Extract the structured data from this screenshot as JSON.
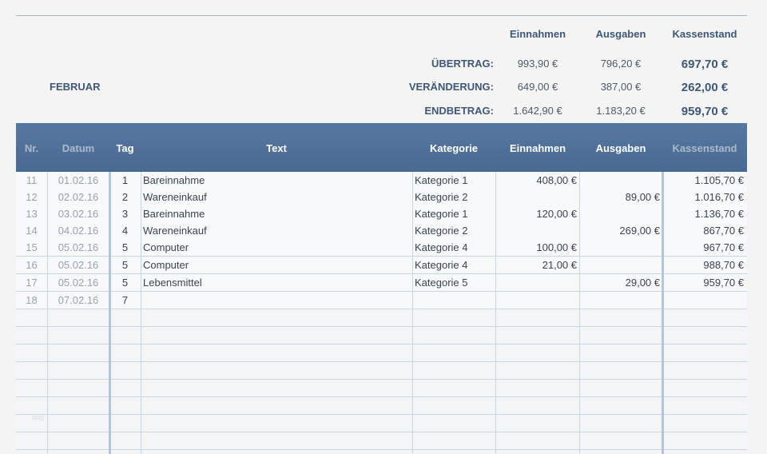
{
  "summary": {
    "headers": {
      "income": "Einnahmen",
      "expenses": "Ausgaben",
      "balance": "Kassenstand"
    },
    "month": "FEBRUAR",
    "rows": [
      {
        "label": "ÜBERTRAG:",
        "income": "993,90 €",
        "expenses": "796,20 €",
        "balance": "697,70 €"
      },
      {
        "label": "VERÄNDERUNG:",
        "income": "649,00 €",
        "expenses": "387,00 €",
        "balance": "262,00 €"
      },
      {
        "label": "ENDBETRAG:",
        "income": "1.642,90 €",
        "expenses": "1.183,20 €",
        "balance": "959,70 €"
      }
    ]
  },
  "table": {
    "headers": {
      "nr": "Nr.",
      "datum": "Datum",
      "tag": "Tag",
      "text": "Text",
      "kategorie": "Kategorie",
      "einnahmen": "Einnahmen",
      "ausgaben": "Ausgaben",
      "kassenstand": "Kassenstand"
    },
    "rows": [
      {
        "nr": "11",
        "datum": "01.02.16",
        "tag": "1",
        "text": "Bareinnahme",
        "kategorie": "Kategorie 1",
        "einnahmen": "408,00 €",
        "ausgaben": "",
        "kassenstand": "1.105,70 €"
      },
      {
        "nr": "12",
        "datum": "02.02.16",
        "tag": "2",
        "text": "Wareneinkauf",
        "kategorie": "Kategorie 2",
        "einnahmen": "",
        "ausgaben": "89,00 €",
        "kassenstand": "1.016,70 €"
      },
      {
        "nr": "13",
        "datum": "03.02.16",
        "tag": "3",
        "text": "Bareinnahme",
        "kategorie": "Kategorie 1",
        "einnahmen": "120,00 €",
        "ausgaben": "",
        "kassenstand": "1.136,70 €"
      },
      {
        "nr": "14",
        "datum": "04.02.16",
        "tag": "4",
        "text": "Wareneinkauf",
        "kategorie": "Kategorie 2",
        "einnahmen": "",
        "ausgaben": "269,00 €",
        "kassenstand": "867,70 €"
      },
      {
        "nr": "15",
        "datum": "05.02.16",
        "tag": "5",
        "text": "Computer",
        "kategorie": "Kategorie 4",
        "einnahmen": "100,00 €",
        "ausgaben": "",
        "kassenstand": "967,70 €"
      },
      {
        "nr": "16",
        "datum": "05.02.16",
        "tag": "5",
        "text": "Computer",
        "kategorie": "Kategorie 4",
        "einnahmen": "21,00 €",
        "ausgaben": "",
        "kassenstand": "988,70 €"
      },
      {
        "nr": "17",
        "datum": "05.02.16",
        "tag": "5",
        "text": "Lebensmittel",
        "kategorie": "Kategorie 5",
        "einnahmen": "",
        "ausgaben": "29,00 €",
        "kassenstand": "959,70 €"
      },
      {
        "nr": "18",
        "datum": "07.02.16",
        "tag": "7",
        "text": "",
        "kategorie": "",
        "einnahmen": "",
        "ausgaben": "",
        "kassenstand": ""
      }
    ]
  },
  "watermark": "dog"
}
